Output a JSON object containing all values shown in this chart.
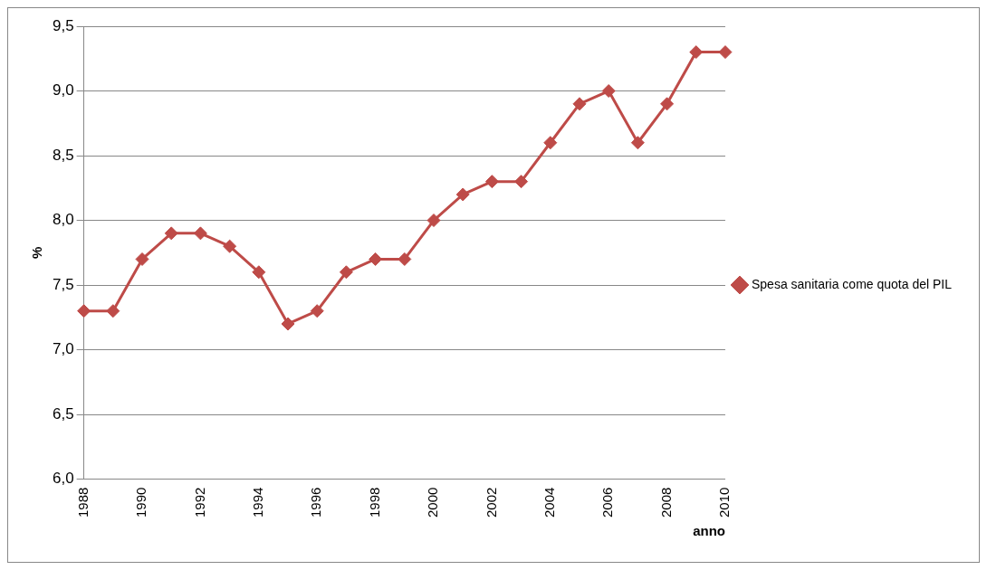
{
  "chart_data": {
    "type": "line",
    "xlabel": "anno",
    "ylabel": "%",
    "categories": [
      "1988",
      null,
      "1990",
      null,
      "1992",
      null,
      "1994",
      null,
      "1996",
      null,
      "1998",
      null,
      "2000",
      null,
      "2002",
      null,
      "2004",
      null,
      "2006",
      null,
      "2008",
      null,
      "2010"
    ],
    "series": [
      {
        "name": "Spesa sanitaria come quota del PIL",
        "color": "#be4b48",
        "values": [
          7.3,
          7.3,
          7.7,
          7.9,
          7.9,
          7.8,
          7.6,
          7.2,
          7.3,
          7.6,
          7.7,
          7.7,
          8.0,
          8.2,
          8.3,
          8.3,
          8.6,
          8.9,
          9.0,
          8.6,
          8.9,
          9.3,
          9.3
        ]
      }
    ],
    "ylim": [
      6,
      9.5
    ],
    "yticks": [
      {
        "value": 6,
        "label": "6,0"
      },
      {
        "value": 6.5,
        "label": "6,5"
      },
      {
        "value": 7,
        "label": "7,0"
      },
      {
        "value": 7.5,
        "label": "7,5"
      },
      {
        "value": 8,
        "label": "8,0"
      },
      {
        "value": 8.5,
        "label": "8,5"
      },
      {
        "value": 9,
        "label": "9,0"
      },
      {
        "value": 9.5,
        "label": "9,5"
      }
    ],
    "grid": "y",
    "legend": "right",
    "marker": "diamond",
    "line_style": "solid"
  }
}
